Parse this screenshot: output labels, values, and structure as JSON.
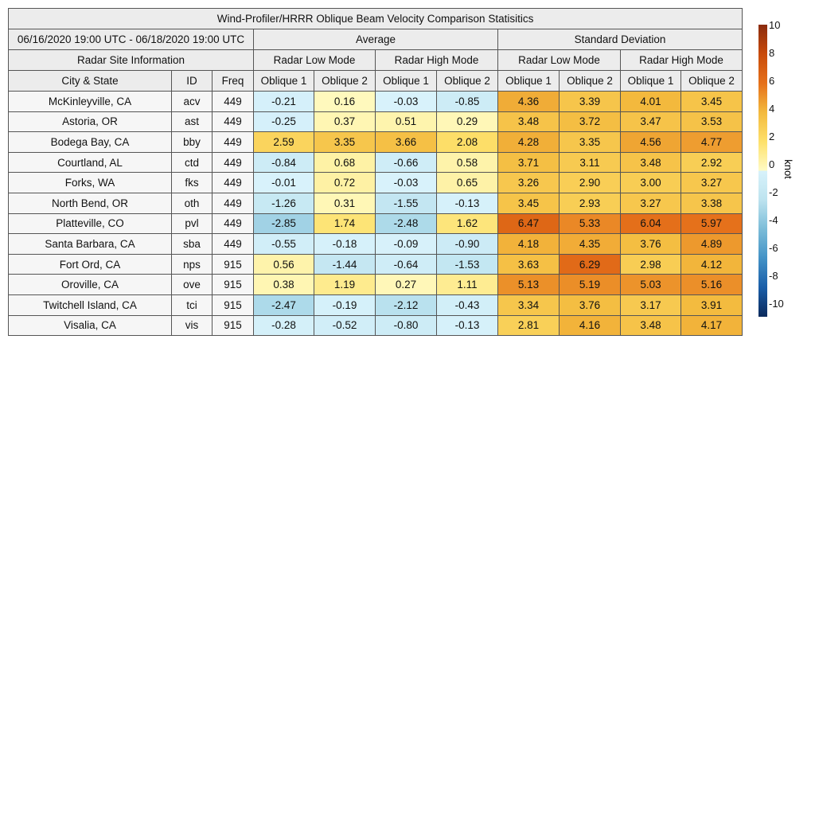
{
  "chart_data": {
    "type": "table",
    "title": "Wind-Profiler/HRRR Oblique Beam Velocity Comparison Statisitics",
    "date_range": "06/16/2020 19:00 UTC - 06/18/2020 19:00 UTC",
    "groups": [
      "Average",
      "Standard Deviation"
    ],
    "site_info_label": "Radar Site Information",
    "modes": [
      "Radar Low Mode",
      "Radar High Mode",
      "Radar Low Mode",
      "Radar High Mode"
    ],
    "columns": [
      "City & State",
      "ID",
      "Freq",
      "Oblique 1",
      "Oblique 2",
      "Oblique 1",
      "Oblique 2",
      "Oblique 1",
      "Oblique 2",
      "Oblique 1",
      "Oblique 2"
    ],
    "rows": [
      {
        "city": "McKinleyville, CA",
        "id": "acv",
        "freq": "449",
        "values": [
          "-0.21",
          "0.16",
          "-0.03",
          "-0.85",
          "4.36",
          "3.39",
          "4.01",
          "3.45"
        ]
      },
      {
        "city": "Astoria, OR",
        "id": "ast",
        "freq": "449",
        "values": [
          "-0.25",
          "0.37",
          "0.51",
          "0.29",
          "3.48",
          "3.72",
          "3.47",
          "3.53"
        ]
      },
      {
        "city": "Bodega Bay, CA",
        "id": "bby",
        "freq": "449",
        "values": [
          "2.59",
          "3.35",
          "3.66",
          "2.08",
          "4.28",
          "3.35",
          "4.56",
          "4.77"
        ]
      },
      {
        "city": "Courtland, AL",
        "id": "ctd",
        "freq": "449",
        "values": [
          "-0.84",
          "0.68",
          "-0.66",
          "0.58",
          "3.71",
          "3.11",
          "3.48",
          "2.92"
        ]
      },
      {
        "city": "Forks, WA",
        "id": "fks",
        "freq": "449",
        "values": [
          "-0.01",
          "0.72",
          "-0.03",
          "0.65",
          "3.26",
          "2.90",
          "3.00",
          "3.27"
        ]
      },
      {
        "city": "North Bend, OR",
        "id": "oth",
        "freq": "449",
        "values": [
          "-1.26",
          "0.31",
          "-1.55",
          "-0.13",
          "3.45",
          "2.93",
          "3.27",
          "3.38"
        ]
      },
      {
        "city": "Platteville, CO",
        "id": "pvl",
        "freq": "449",
        "values": [
          "-2.85",
          "1.74",
          "-2.48",
          "1.62",
          "6.47",
          "5.33",
          "6.04",
          "5.97"
        ]
      },
      {
        "city": "Santa Barbara, CA",
        "id": "sba",
        "freq": "449",
        "values": [
          "-0.55",
          "-0.18",
          "-0.09",
          "-0.90",
          "4.18",
          "4.35",
          "3.76",
          "4.89"
        ]
      },
      {
        "city": "Fort Ord, CA",
        "id": "nps",
        "freq": "915",
        "values": [
          "0.56",
          "-1.44",
          "-0.64",
          "-1.53",
          "3.63",
          "6.29",
          "2.98",
          "4.12"
        ]
      },
      {
        "city": "Oroville, CA",
        "id": "ove",
        "freq": "915",
        "values": [
          "0.38",
          "1.19",
          "0.27",
          "1.11",
          "5.13",
          "5.19",
          "5.03",
          "5.16"
        ]
      },
      {
        "city": "Twitchell Island, CA",
        "id": "tci",
        "freq": "915",
        "values": [
          "-2.47",
          "-0.19",
          "-2.12",
          "-0.43",
          "3.34",
          "3.76",
          "3.17",
          "3.91"
        ]
      },
      {
        "city": "Visalia, CA",
        "id": "vis",
        "freq": "915",
        "values": [
          "-0.28",
          "-0.52",
          "-0.80",
          "-0.13",
          "2.81",
          "4.16",
          "3.48",
          "4.17"
        ]
      }
    ],
    "colorbar": {
      "label": "knot",
      "range": [
        -10,
        10
      ],
      "ticks": [
        "10",
        "8",
        "6",
        "4",
        "2",
        "0",
        "-2",
        "-4",
        "-6",
        "-8",
        "-10"
      ],
      "colors": {
        "-10": "#0b2a5c",
        "-8": "#1a5ea8",
        "-6": "#4392c6",
        "-4": "#7bbcd8",
        "-2": "#bde3ef",
        "-0": "#d8f2fb",
        "0": "#fffbc4",
        "2": "#fde06a",
        "4": "#f3b93d",
        "6": "#e5701a",
        "8": "#c84a0a",
        "10": "#8a2b0e"
      }
    }
  }
}
